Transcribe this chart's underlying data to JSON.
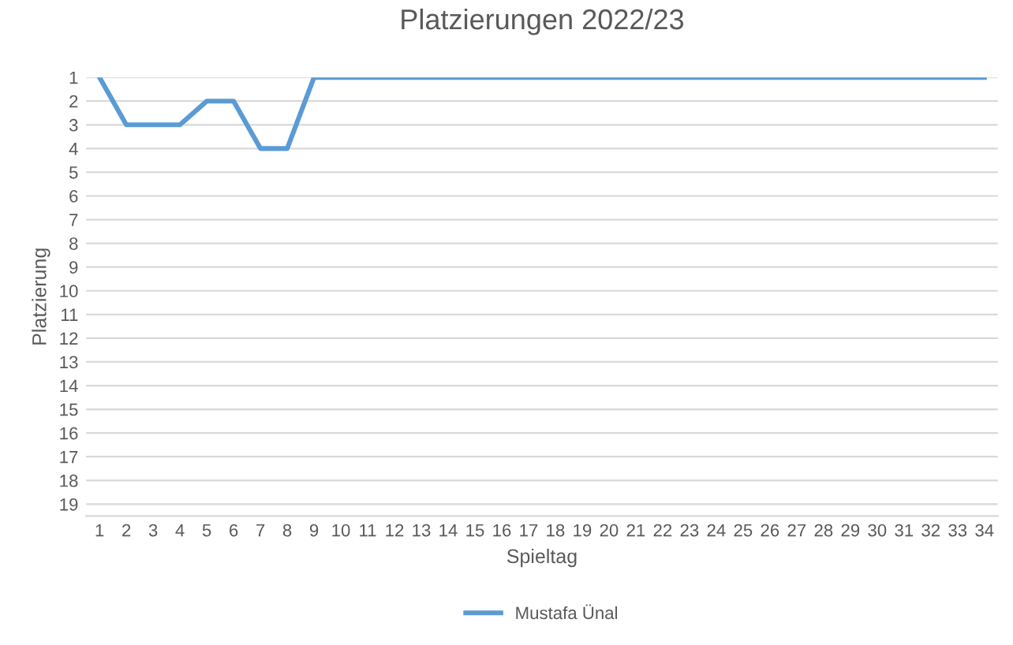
{
  "chart_data": {
    "type": "line",
    "title": "Platzierungen 2022/23",
    "xlabel": "Spieltag",
    "ylabel": "Platzierung",
    "categories": [
      "1",
      "2",
      "3",
      "4",
      "5",
      "6",
      "7",
      "8",
      "9",
      "10",
      "11",
      "12",
      "13",
      "14",
      "15",
      "16",
      "17",
      "18",
      "19",
      "20",
      "21",
      "22",
      "23",
      "24",
      "25",
      "26",
      "27",
      "28",
      "29",
      "30",
      "31",
      "32",
      "33",
      "34"
    ],
    "series": [
      {
        "name": "Mustafa Ünal",
        "color": "#5b9bd5",
        "values": [
          1,
          3,
          3,
          3,
          2,
          2,
          4,
          4,
          1,
          1,
          1,
          1,
          1,
          1,
          1,
          1,
          1,
          1,
          1,
          1,
          1,
          1,
          1,
          1,
          1,
          1,
          1,
          1,
          1,
          1,
          1,
          1,
          1,
          1
        ]
      }
    ],
    "ylim": [
      19.5,
      1
    ],
    "yticks": [
      1,
      2,
      3,
      4,
      5,
      6,
      7,
      8,
      9,
      10,
      11,
      12,
      13,
      14,
      15,
      16,
      17,
      18,
      19
    ],
    "grid": "y",
    "legend": "bottom",
    "marker": "none",
    "line_style": "solid"
  }
}
